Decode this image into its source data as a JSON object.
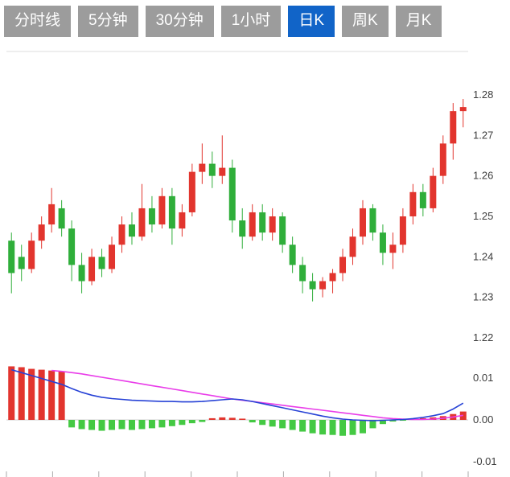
{
  "toolbar": {
    "items": [
      {
        "label": "分时线",
        "name": "tab-timeline",
        "active": false
      },
      {
        "label": "5分钟",
        "name": "tab-5min",
        "active": false
      },
      {
        "label": "30分钟",
        "name": "tab-30min",
        "active": false
      },
      {
        "label": "1小时",
        "name": "tab-1hour",
        "active": false
      },
      {
        "label": "日K",
        "name": "tab-daily-k",
        "active": true
      },
      {
        "label": "周K",
        "name": "tab-weekly-k",
        "active": false
      },
      {
        "label": "月K",
        "name": "tab-monthly-k",
        "active": false
      }
    ],
    "colors": {
      "tab_bg": "#9c9c9c",
      "tab_active_bg": "#1164c8",
      "tab_text": "#ffffff"
    }
  },
  "chart_data": {
    "type": "candlestick",
    "title": "",
    "grid": "minimal",
    "y_axis_labels": [
      1.28,
      1.27,
      1.26,
      1.25,
      1.24,
      1.23,
      1.22
    ],
    "y_range": [
      1.2156,
      1.2905
    ],
    "candles_format": [
      "open",
      "high",
      "low",
      "close"
    ],
    "candles": [
      [
        1.244,
        1.246,
        1.231,
        1.236
      ],
      [
        1.24,
        1.243,
        1.234,
        1.237
      ],
      [
        1.237,
        1.246,
        1.236,
        1.244
      ],
      [
        1.244,
        1.25,
        1.242,
        1.248
      ],
      [
        1.248,
        1.257,
        1.246,
        1.253
      ],
      [
        1.252,
        1.254,
        1.245,
        1.247
      ],
      [
        1.247,
        1.249,
        1.234,
        1.238
      ],
      [
        1.238,
        1.241,
        1.231,
        1.234
      ],
      [
        1.234,
        1.242,
        1.233,
        1.24
      ],
      [
        1.24,
        1.242,
        1.235,
        1.237
      ],
      [
        1.237,
        1.245,
        1.236,
        1.243
      ],
      [
        1.243,
        1.25,
        1.241,
        1.248
      ],
      [
        1.248,
        1.251,
        1.243,
        1.245
      ],
      [
        1.245,
        1.258,
        1.244,
        1.252
      ],
      [
        1.252,
        1.255,
        1.246,
        1.248
      ],
      [
        1.248,
        1.257,
        1.247,
        1.255
      ],
      [
        1.255,
        1.257,
        1.243,
        1.247
      ],
      [
        1.247,
        1.253,
        1.245,
        1.251
      ],
      [
        1.251,
        1.263,
        1.25,
        1.261
      ],
      [
        1.261,
        1.268,
        1.258,
        1.263
      ],
      [
        1.263,
        1.266,
        1.257,
        1.26
      ],
      [
        1.26,
        1.27,
        1.258,
        1.262
      ],
      [
        1.262,
        1.264,
        1.246,
        1.249
      ],
      [
        1.249,
        1.252,
        1.242,
        1.245
      ],
      [
        1.245,
        1.253,
        1.244,
        1.251
      ],
      [
        1.251,
        1.253,
        1.244,
        1.246
      ],
      [
        1.246,
        1.252,
        1.244,
        1.25
      ],
      [
        1.25,
        1.251,
        1.241,
        1.243
      ],
      [
        1.243,
        1.245,
        1.236,
        1.238
      ],
      [
        1.238,
        1.24,
        1.231,
        1.234
      ],
      [
        1.234,
        1.236,
        1.229,
        1.232
      ],
      [
        1.232,
        1.235,
        1.23,
        1.234
      ],
      [
        1.234,
        1.237,
        1.231,
        1.236
      ],
      [
        1.236,
        1.242,
        1.234,
        1.24
      ],
      [
        1.24,
        1.247,
        1.238,
        1.245
      ],
      [
        1.245,
        1.254,
        1.243,
        1.252
      ],
      [
        1.252,
        1.253,
        1.244,
        1.246
      ],
      [
        1.246,
        1.248,
        1.238,
        1.241
      ],
      [
        1.241,
        1.246,
        1.237,
        1.243
      ],
      [
        1.243,
        1.252,
        1.241,
        1.25
      ],
      [
        1.25,
        1.258,
        1.248,
        1.256
      ],
      [
        1.256,
        1.258,
        1.25,
        1.252
      ],
      [
        1.252,
        1.262,
        1.251,
        1.26
      ],
      [
        1.26,
        1.27,
        1.258,
        1.268
      ],
      [
        1.268,
        1.278,
        1.264,
        1.276
      ],
      [
        1.276,
        1.279,
        1.272,
        1.277
      ]
    ],
    "colors": {
      "up": "#e2352e",
      "down": "#2fae3a"
    },
    "indicator": {
      "type": "macd",
      "y_axis_labels": [
        0.01,
        0.0,
        -0.01
      ],
      "histogram": [
        0.0128,
        0.0126,
        0.0122,
        0.012,
        0.0118,
        0.0116,
        -0.0018,
        -0.0022,
        -0.0024,
        -0.0026,
        -0.0024,
        -0.0022,
        -0.0024,
        -0.0022,
        -0.002,
        -0.0018,
        -0.0015,
        -0.0012,
        -0.0008,
        -0.0005,
        0.0004,
        0.0006,
        0.0005,
        0.0003,
        -0.0006,
        -0.0012,
        -0.0016,
        -0.002,
        -0.0024,
        -0.0028,
        -0.0032,
        -0.0035,
        -0.0036,
        -0.0038,
        -0.0036,
        -0.0032,
        -0.002,
        -0.001,
        -0.0004,
        -0.0002,
        0.0002,
        0.0004,
        0.0006,
        0.0009,
        0.0014,
        0.002
      ],
      "dif": [
        0.012,
        0.0113,
        0.0106,
        0.0099,
        0.0092,
        0.0085,
        0.0075,
        0.0066,
        0.0059,
        0.0054,
        0.0051,
        0.0049,
        0.0047,
        0.0046,
        0.0045,
        0.0044,
        0.0044,
        0.0043,
        0.0043,
        0.0044,
        0.0046,
        0.0048,
        0.005,
        0.0048,
        0.0044,
        0.0039,
        0.0034,
        0.0029,
        0.0024,
        0.0019,
        0.0014,
        0.0009,
        0.0005,
        0.0002,
        0.0,
        -0.0001,
        -0.0002,
        -0.0001,
        0.0,
        0.0001,
        0.0003,
        0.0006,
        0.001,
        0.0015,
        0.0026,
        0.004
      ],
      "dea": [
        null,
        null,
        null,
        null,
        0.0118,
        0.0116,
        0.0113,
        0.011,
        0.0106,
        0.0102,
        0.0098,
        0.0094,
        0.009,
        0.0086,
        0.0082,
        0.0078,
        0.0074,
        0.007,
        0.0066,
        0.0062,
        0.0058,
        0.0054,
        0.005,
        0.0047,
        0.0044,
        0.0041,
        0.0038,
        0.0035,
        0.0032,
        0.0029,
        0.0026,
        0.0023,
        0.002,
        0.0017,
        0.0014,
        0.0011,
        0.0008,
        0.0005,
        0.0003,
        0.0002,
        0.0001,
        0.0001,
        0.0002,
        0.0004,
        0.0007,
        0.0011
      ],
      "colors": {
        "positive": "#e2352e",
        "negative": "#44c943",
        "dif": "#2742d6",
        "dea": "#e93de9"
      }
    },
    "axis_text_color": "#3c3c3c",
    "border_color": "#dddddd"
  }
}
